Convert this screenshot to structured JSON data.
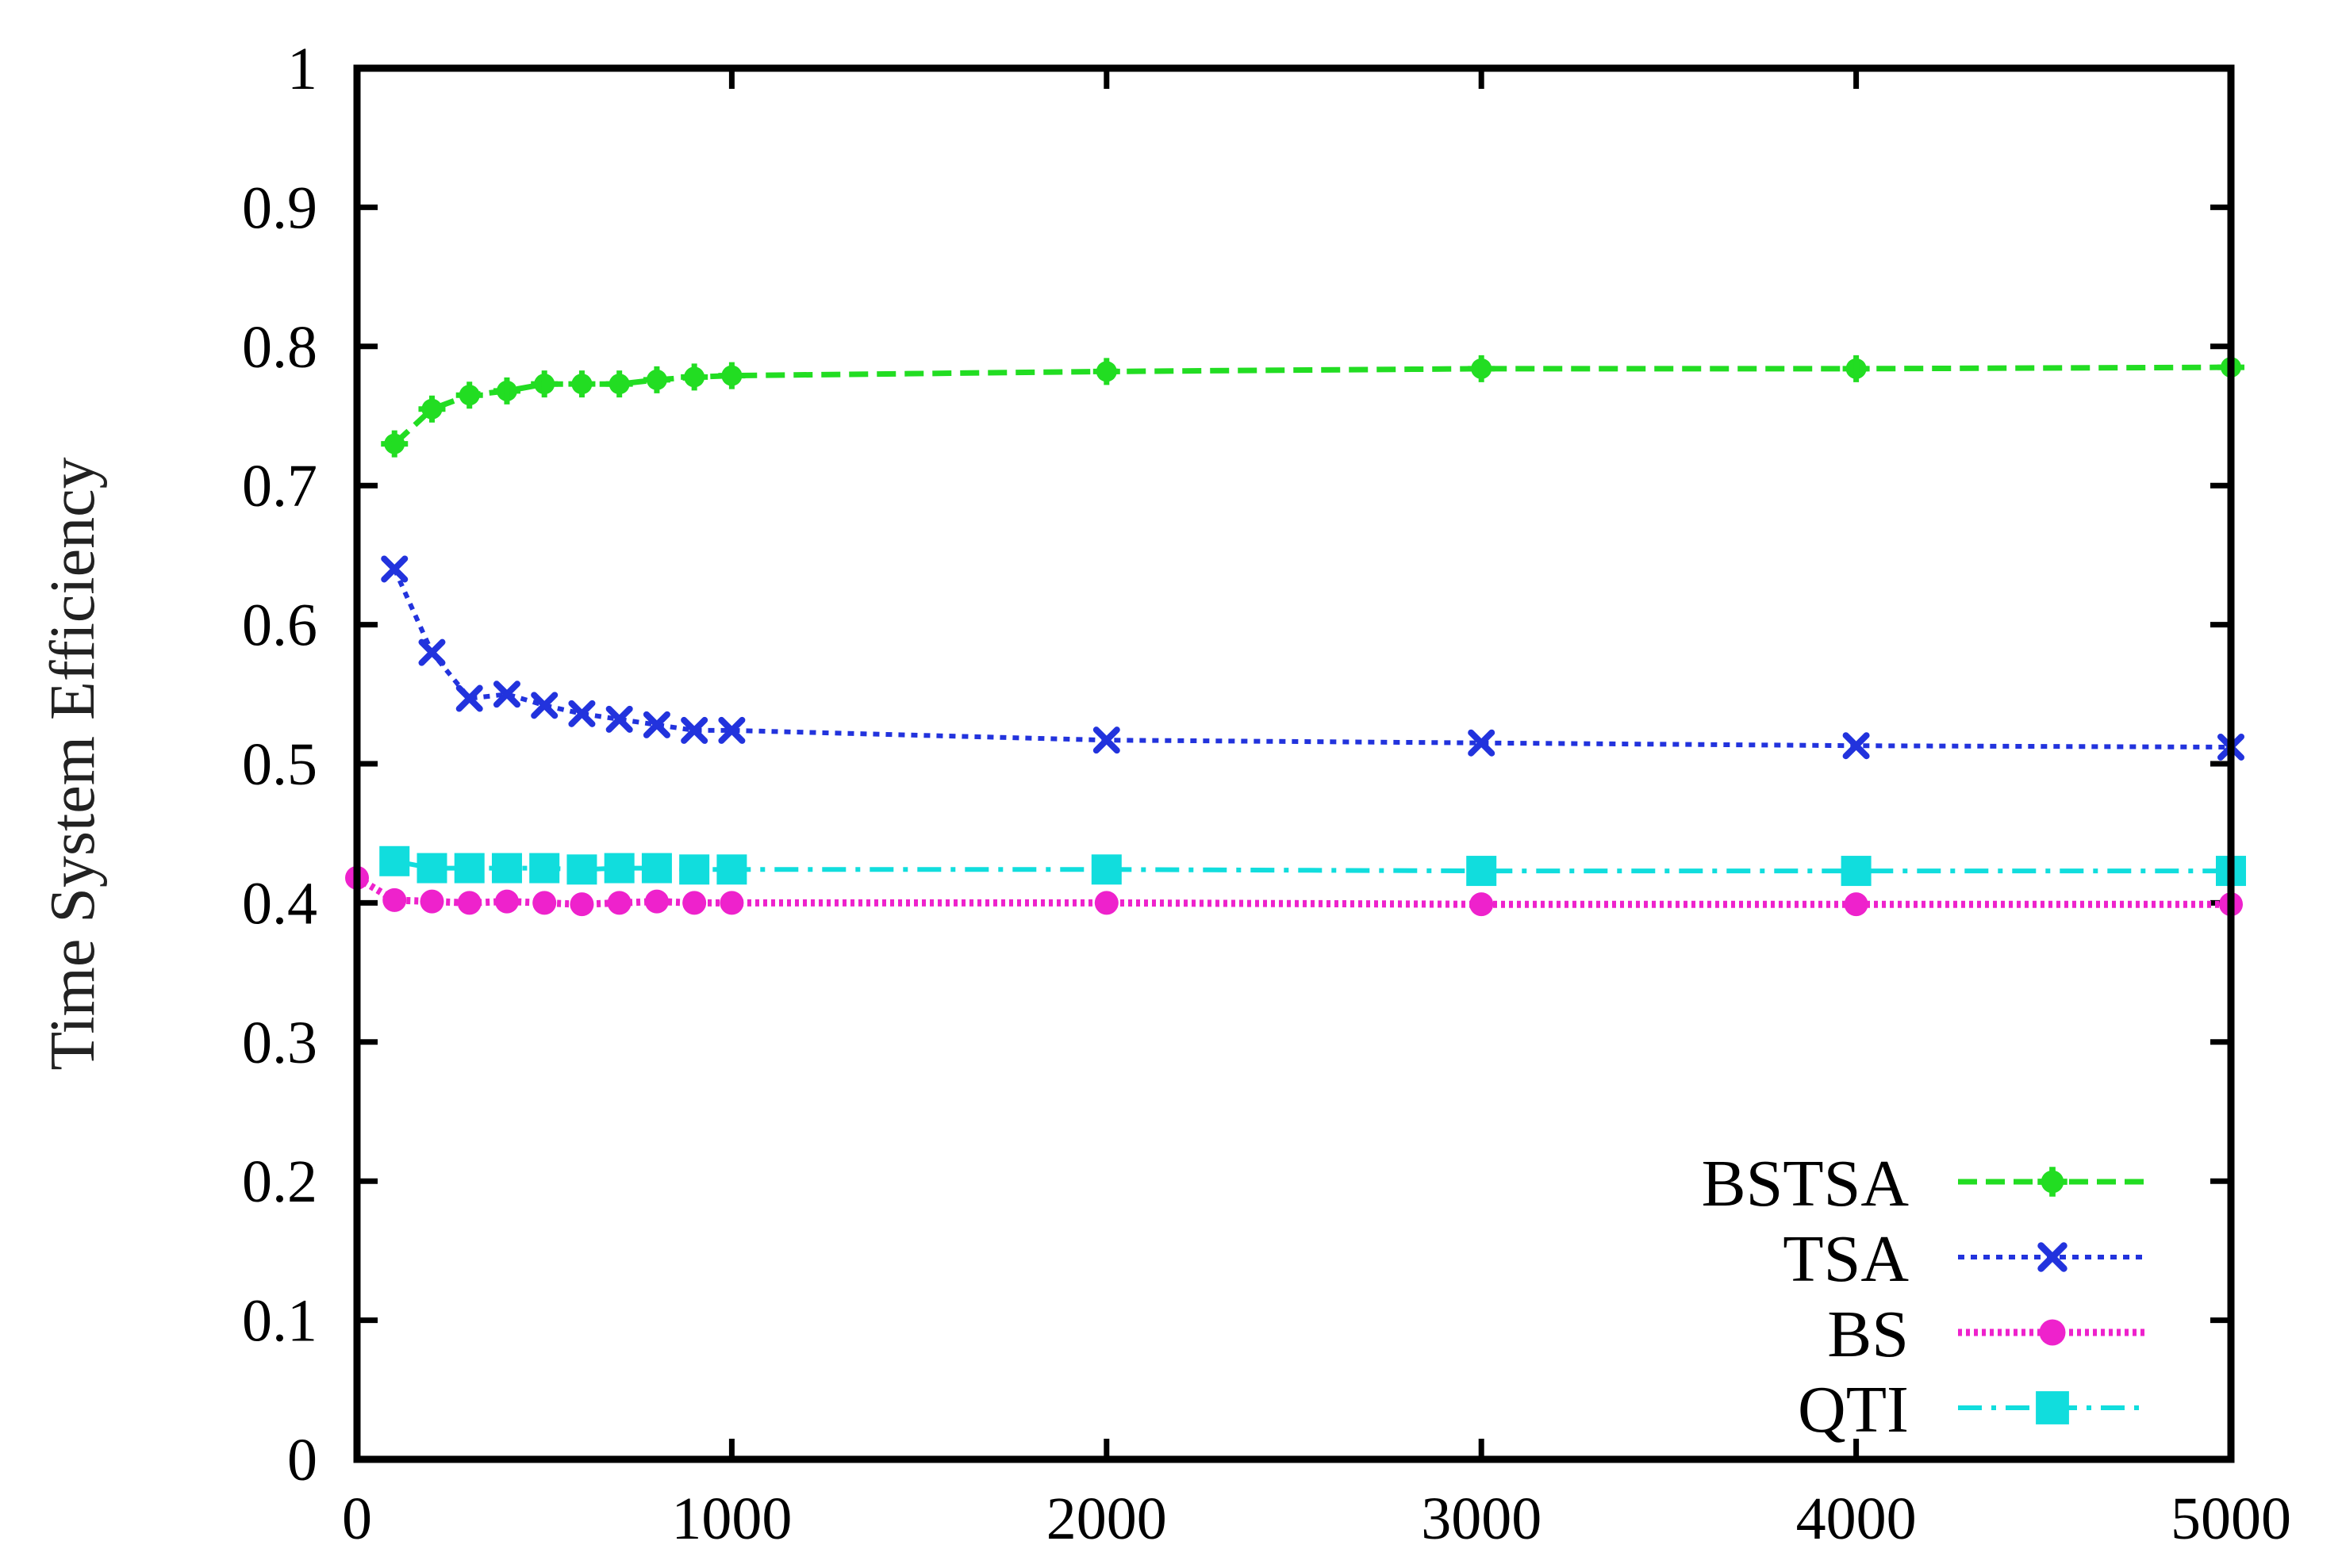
{
  "chart_data": {
    "type": "line",
    "title": "",
    "xlabel": "",
    "ylabel": "Time System Efficiency",
    "xlim": [
      0,
      5000
    ],
    "ylim": [
      0,
      1
    ],
    "x_ticks": [
      0,
      1000,
      2000,
      3000,
      4000,
      5000
    ],
    "y_ticks": [
      0,
      0.1,
      0.2,
      0.3,
      0.4,
      0.5,
      0.6,
      0.7,
      0.8,
      0.9,
      1
    ],
    "x_tick_labels": [
      "0",
      "1000",
      "2000",
      "3000",
      "4000",
      "5000"
    ],
    "y_tick_labels": [
      "0",
      "0.1",
      "0.2",
      "0.3",
      "0.4",
      "0.5",
      "0.6",
      "0.7",
      "0.8",
      "0.9",
      "1"
    ],
    "grid": false,
    "legend_position": "bottom-right",
    "series": [
      {
        "name": "BSTSA",
        "color": "#22dd22",
        "line_style": "dashed",
        "marker": "plus-circle",
        "x": [
          100,
          200,
          300,
          400,
          500,
          600,
          700,
          800,
          900,
          1000,
          2000,
          3000,
          4000,
          5000
        ],
        "y": [
          0.73,
          0.755,
          0.765,
          0.768,
          0.773,
          0.773,
          0.773,
          0.776,
          0.778,
          0.779,
          0.782,
          0.784,
          0.784,
          0.785
        ]
      },
      {
        "name": "TSA",
        "color": "#2233dd",
        "line_style": "dotted",
        "marker": "x",
        "x": [
          100,
          200,
          300,
          400,
          500,
          600,
          700,
          800,
          900,
          1000,
          2000,
          3000,
          4000,
          5000
        ],
        "y": [
          0.64,
          0.58,
          0.547,
          0.55,
          0.542,
          0.536,
          0.532,
          0.528,
          0.524,
          0.524,
          0.517,
          0.515,
          0.513,
          0.512
        ]
      },
      {
        "name": "BS",
        "color": "#ee22cc",
        "line_style": "dotted-thick",
        "marker": "circle",
        "x": [
          0,
          100,
          200,
          300,
          400,
          500,
          600,
          700,
          800,
          900,
          1000,
          2000,
          3000,
          4000,
          5000
        ],
        "y": [
          0.418,
          0.402,
          0.401,
          0.4,
          0.401,
          0.4,
          0.399,
          0.4,
          0.401,
          0.4,
          0.4,
          0.4,
          0.399,
          0.399,
          0.399
        ]
      },
      {
        "name": "QTI",
        "color": "#11dddd",
        "line_style": "dash-dot",
        "marker": "square",
        "x": [
          100,
          200,
          300,
          400,
          500,
          600,
          700,
          800,
          900,
          1000,
          2000,
          3000,
          4000,
          5000
        ],
        "y": [
          0.43,
          0.425,
          0.425,
          0.425,
          0.425,
          0.424,
          0.425,
          0.425,
          0.424,
          0.424,
          0.424,
          0.423,
          0.423,
          0.423
        ]
      }
    ]
  }
}
